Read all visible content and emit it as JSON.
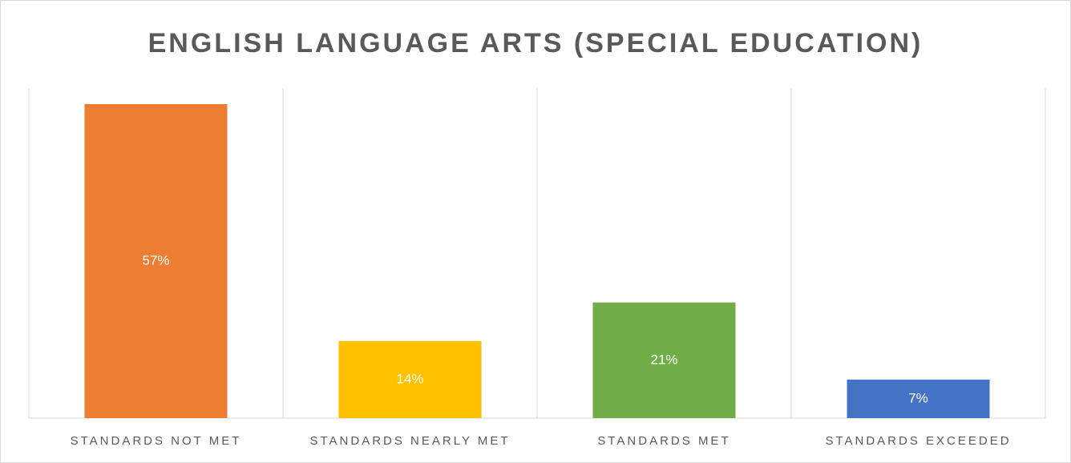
{
  "chart_data": {
    "type": "bar",
    "title": "ENGLISH LANGUAGE ARTS (SPECIAL EDUCATION)",
    "categories": [
      "STANDARDS NOT MET",
      "STANDARDS NEARLY MET",
      "STANDARDS MET",
      "STANDARDS EXCEEDED"
    ],
    "values": [
      57,
      14,
      21,
      7
    ],
    "value_labels": [
      "57%",
      "14%",
      "21%",
      "7%"
    ],
    "colors": [
      "#ed7d31",
      "#ffc000",
      "#70ad47",
      "#4472c4"
    ]
  }
}
